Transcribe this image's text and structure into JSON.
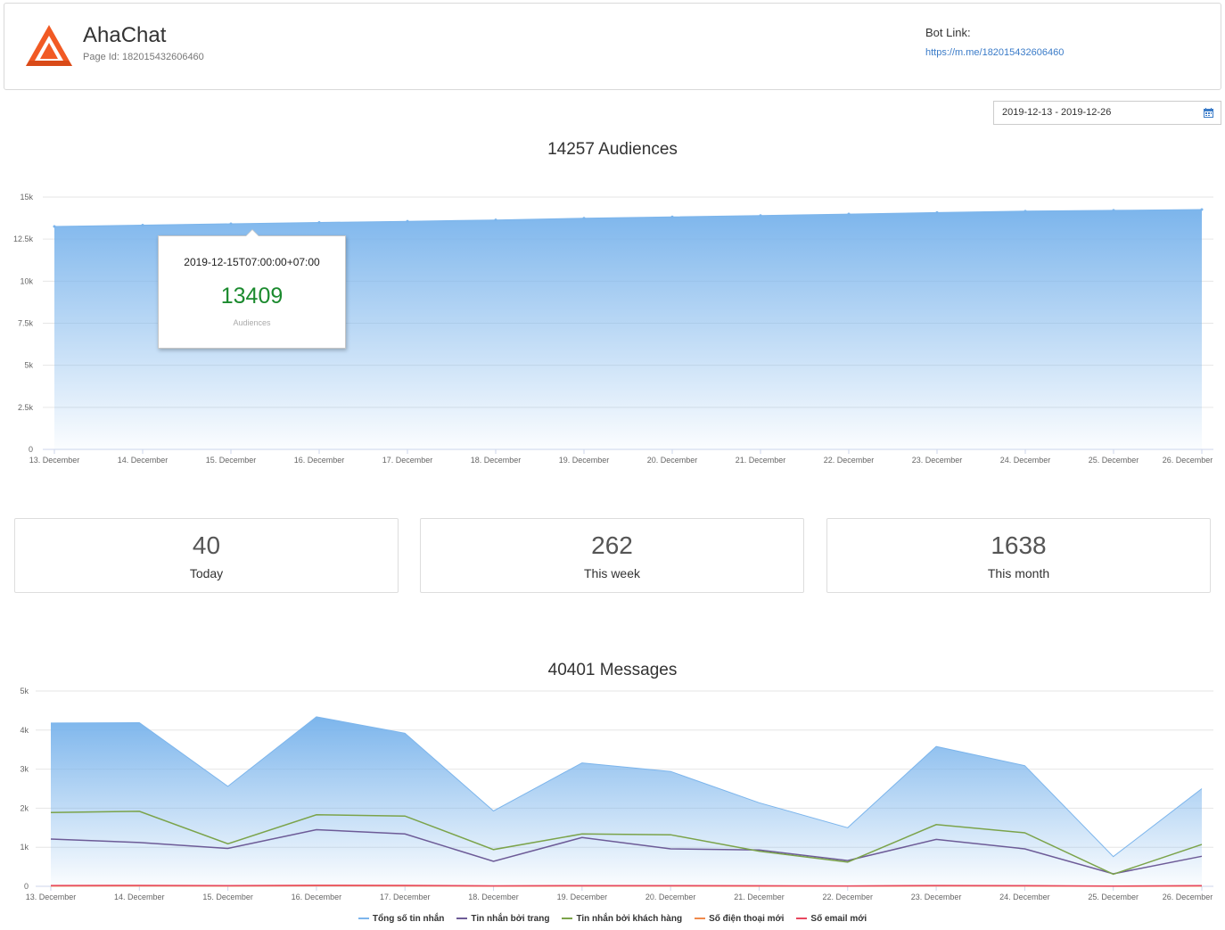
{
  "header": {
    "app_name": "AhaChat",
    "page_id": "Page Id: 182015432606460",
    "bot_link_label": "Bot Link:",
    "bot_link_url": "https://m.me/182015432606460"
  },
  "date_range": {
    "value": "2019-12-13 - 2019-12-26",
    "icon": "calendar-icon"
  },
  "audience_chart": {
    "title": "14257 Audiences",
    "tooltip": {
      "date": "2019-12-15T07:00:00+07:00",
      "value": "13409",
      "label": "Audiences"
    }
  },
  "stats": [
    {
      "value": "40",
      "label": "Today"
    },
    {
      "value": "262",
      "label": "This week"
    },
    {
      "value": "1638",
      "label": "This month"
    }
  ],
  "messages_chart": {
    "title": "40401 Messages"
  },
  "chart_data": [
    {
      "type": "area",
      "title": "14257 Audiences",
      "categories": [
        "13. December",
        "14. December",
        "15. December",
        "16. December",
        "17. December",
        "18. December",
        "19. December",
        "20. December",
        "21. December",
        "22. December",
        "23. December",
        "24. December",
        "25. December",
        "26. December"
      ],
      "yticks": [
        "0",
        "2.5k",
        "5k",
        "7.5k",
        "10k",
        "12.5k",
        "15k"
      ],
      "ylim": [
        0,
        15000
      ],
      "series": [
        {
          "name": "Audiences",
          "color": "#7cb5ec",
          "values": [
            13250,
            13330,
            13409,
            13490,
            13560,
            13640,
            13740,
            13820,
            13900,
            13990,
            14080,
            14160,
            14210,
            14257
          ]
        }
      ],
      "grid": true
    },
    {
      "type": "area",
      "title": "40401 Messages",
      "categories": [
        "13. December",
        "14. December",
        "15. December",
        "16. December",
        "17. December",
        "18. December",
        "19. December",
        "20. December",
        "21. December",
        "22. December",
        "23. December",
        "24. December",
        "25. December",
        "26. December"
      ],
      "yticks": [
        "0",
        "1k",
        "2k",
        "3k",
        "4k",
        "5k"
      ],
      "ylim": [
        0,
        5000
      ],
      "series": [
        {
          "name": "Tổng số tin nhắn",
          "color": "#7cb5ec",
          "values": [
            4180,
            4190,
            2560,
            4340,
            3920,
            1930,
            3160,
            2940,
            2140,
            1500,
            3580,
            3090,
            760,
            2500
          ]
        },
        {
          "name": "Tin nhắn bởi trang",
          "color": "#6d5b97",
          "values": [
            1210,
            1120,
            970,
            1450,
            1340,
            640,
            1250,
            960,
            930,
            660,
            1200,
            960,
            320,
            770
          ]
        },
        {
          "name": "Tin nhắn bởi khách hàng",
          "color": "#7ba34a",
          "values": [
            1890,
            1920,
            1090,
            1830,
            1800,
            940,
            1340,
            1320,
            900,
            620,
            1580,
            1370,
            310,
            1070
          ]
        },
        {
          "name": "Số điện thoại mới",
          "color": "#f08a4b",
          "values": [
            10,
            12,
            8,
            14,
            12,
            6,
            10,
            9,
            7,
            5,
            11,
            9,
            3,
            8
          ]
        },
        {
          "name": "Số email mới",
          "color": "#e8475f",
          "values": [
            20,
            22,
            15,
            25,
            22,
            12,
            18,
            16,
            14,
            10,
            20,
            16,
            6,
            15
          ]
        }
      ],
      "legend": "bottom-center",
      "grid": true
    }
  ]
}
